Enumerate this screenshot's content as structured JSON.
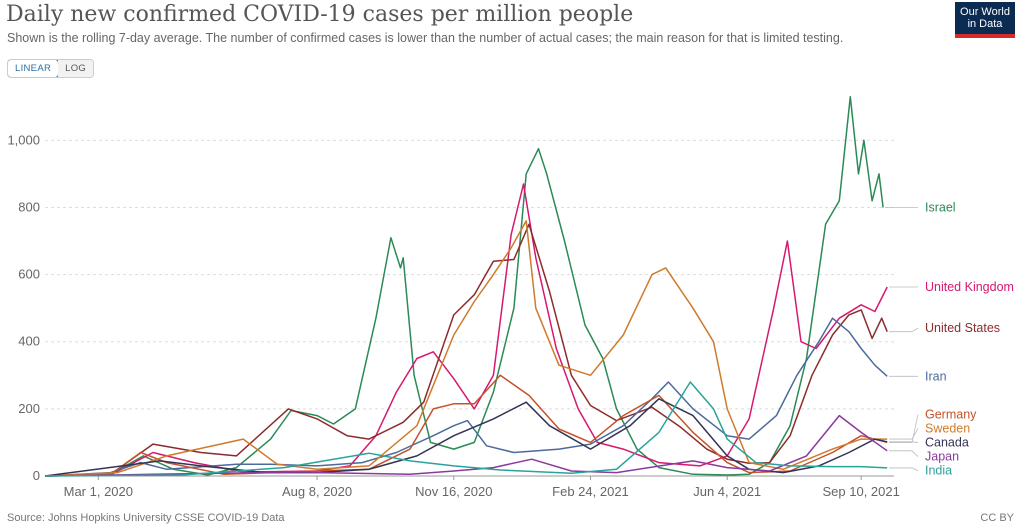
{
  "title": "Daily new confirmed COVID-19 cases per million people",
  "subtitle": "Shown is the rolling 7-day average. The number of confirmed cases is lower than the number of actual cases; the main reason for that is limited testing.",
  "logo": {
    "line1": "Our World",
    "line2": "in Data"
  },
  "scale_toggle": {
    "linear": "LINEAR",
    "log": "LOG",
    "selected": "LINEAR"
  },
  "source": "Source: Johns Hopkins University CSSE COVID-19 Data",
  "license": "CC BY",
  "chart_data": {
    "type": "line",
    "x_range": [
      "2020-01-22",
      "2021-10-04"
    ],
    "ylim": [
      0,
      1150
    ],
    "y_ticks": [
      0,
      200,
      400,
      600,
      800,
      1000
    ],
    "y_tick_labels": [
      "0",
      "200",
      "400",
      "600",
      "800",
      "1,000"
    ],
    "x_ticks": [
      "2020-03-01",
      "2020-08-08",
      "2020-11-16",
      "2021-02-24",
      "2021-06-04",
      "2021-09-10"
    ],
    "x_tick_labels": [
      "Mar 1, 2020",
      "Aug 8, 2020",
      "Nov 16, 2020",
      "Feb 24, 2021",
      "Jun 4, 2021",
      "Sep 10, 2021"
    ],
    "grid": "horizontal dashed",
    "legend": "right, labels at line ends",
    "series": [
      {
        "name": "Israel",
        "color": "#2b8a56",
        "points": [
          [
            "2020-01-22",
            0
          ],
          [
            "2020-03-10",
            5
          ],
          [
            "2020-04-03",
            60
          ],
          [
            "2020-04-25",
            20
          ],
          [
            "2020-05-20",
            3
          ],
          [
            "2020-06-10",
            25
          ],
          [
            "2020-07-05",
            110
          ],
          [
            "2020-07-20",
            195
          ],
          [
            "2020-08-08",
            180
          ],
          [
            "2020-08-20",
            155
          ],
          [
            "2020-09-05",
            200
          ],
          [
            "2020-09-20",
            470
          ],
          [
            "2020-10-01",
            710
          ],
          [
            "2020-10-08",
            620
          ],
          [
            "2020-10-10",
            650
          ],
          [
            "2020-10-18",
            300
          ],
          [
            "2020-10-30",
            100
          ],
          [
            "2020-11-16",
            80
          ],
          [
            "2020-12-01",
            100
          ],
          [
            "2020-12-15",
            250
          ],
          [
            "2020-12-30",
            500
          ],
          [
            "2021-01-08",
            900
          ],
          [
            "2021-01-17",
            975
          ],
          [
            "2021-01-23",
            900
          ],
          [
            "2021-02-05",
            700
          ],
          [
            "2021-02-20",
            450
          ],
          [
            "2021-03-05",
            350
          ],
          [
            "2021-03-15",
            200
          ],
          [
            "2021-03-30",
            80
          ],
          [
            "2021-04-15",
            25
          ],
          [
            "2021-05-10",
            5
          ],
          [
            "2021-06-04",
            3
          ],
          [
            "2021-06-20",
            5
          ],
          [
            "2021-07-05",
            40
          ],
          [
            "2021-07-20",
            150
          ],
          [
            "2021-08-01",
            350
          ],
          [
            "2021-08-15",
            750
          ],
          [
            "2021-08-25",
            820
          ],
          [
            "2021-09-02",
            1130
          ],
          [
            "2021-09-08",
            900
          ],
          [
            "2021-09-12",
            1000
          ],
          [
            "2021-09-18",
            820
          ],
          [
            "2021-09-23",
            900
          ],
          [
            "2021-09-26",
            800
          ]
        ]
      },
      {
        "name": "United Kingdom",
        "color": "#d6196f",
        "points": [
          [
            "2020-01-22",
            0
          ],
          [
            "2020-03-10",
            3
          ],
          [
            "2020-04-10",
            70
          ],
          [
            "2020-05-10",
            40
          ],
          [
            "2020-06-15",
            12
          ],
          [
            "2020-08-08",
            15
          ],
          [
            "2020-09-01",
            30
          ],
          [
            "2020-09-20",
            120
          ],
          [
            "2020-10-05",
            250
          ],
          [
            "2020-10-20",
            350
          ],
          [
            "2020-11-01",
            370
          ],
          [
            "2020-11-16",
            290
          ],
          [
            "2020-12-01",
            200
          ],
          [
            "2020-12-15",
            300
          ],
          [
            "2020-12-28",
            720
          ],
          [
            "2021-01-06",
            870
          ],
          [
            "2021-01-15",
            650
          ],
          [
            "2021-01-30",
            380
          ],
          [
            "2021-02-15",
            200
          ],
          [
            "2021-03-01",
            100
          ],
          [
            "2021-03-20",
            80
          ],
          [
            "2021-04-15",
            40
          ],
          [
            "2021-05-15",
            30
          ],
          [
            "2021-06-04",
            60
          ],
          [
            "2021-06-20",
            170
          ],
          [
            "2021-07-08",
            500
          ],
          [
            "2021-07-18",
            700
          ],
          [
            "2021-07-28",
            400
          ],
          [
            "2021-08-08",
            380
          ],
          [
            "2021-08-25",
            470
          ],
          [
            "2021-09-10",
            510
          ],
          [
            "2021-09-20",
            490
          ],
          [
            "2021-09-29",
            563
          ]
        ]
      },
      {
        "name": "United States",
        "color": "#8c2b2b",
        "points": [
          [
            "2020-01-22",
            0
          ],
          [
            "2020-03-10",
            5
          ],
          [
            "2020-04-10",
            95
          ],
          [
            "2020-05-15",
            70
          ],
          [
            "2020-06-10",
            60
          ],
          [
            "2020-07-18",
            200
          ],
          [
            "2020-08-08",
            170
          ],
          [
            "2020-08-30",
            120
          ],
          [
            "2020-09-15",
            110
          ],
          [
            "2020-10-10",
            160
          ],
          [
            "2020-10-25",
            220
          ],
          [
            "2020-11-16",
            480
          ],
          [
            "2020-12-01",
            540
          ],
          [
            "2020-12-15",
            640
          ],
          [
            "2020-12-30",
            645
          ],
          [
            "2021-01-10",
            750
          ],
          [
            "2021-01-25",
            550
          ],
          [
            "2021-02-10",
            300
          ],
          [
            "2021-02-24",
            210
          ],
          [
            "2021-03-15",
            165
          ],
          [
            "2021-04-10",
            205
          ],
          [
            "2021-05-01",
            145
          ],
          [
            "2021-05-20",
            80
          ],
          [
            "2021-06-04",
            50
          ],
          [
            "2021-06-20",
            38
          ],
          [
            "2021-07-05",
            40
          ],
          [
            "2021-07-20",
            120
          ],
          [
            "2021-08-05",
            300
          ],
          [
            "2021-08-20",
            420
          ],
          [
            "2021-09-01",
            480
          ],
          [
            "2021-09-10",
            495
          ],
          [
            "2021-09-18",
            410
          ],
          [
            "2021-09-25",
            470
          ],
          [
            "2021-09-29",
            430
          ]
        ]
      },
      {
        "name": "Iran",
        "color": "#4c6a9c",
        "points": [
          [
            "2020-01-22",
            0
          ],
          [
            "2020-03-10",
            10
          ],
          [
            "2020-04-01",
            40
          ],
          [
            "2020-04-20",
            20
          ],
          [
            "2020-06-10",
            35
          ],
          [
            "2020-07-05",
            35
          ],
          [
            "2020-08-08",
            30
          ],
          [
            "2020-09-10",
            40
          ],
          [
            "2020-10-05",
            70
          ],
          [
            "2020-11-01",
            120
          ],
          [
            "2020-11-16",
            150
          ],
          [
            "2020-11-26",
            165
          ],
          [
            "2020-12-10",
            90
          ],
          [
            "2020-12-30",
            70
          ],
          [
            "2021-02-01",
            80
          ],
          [
            "2021-02-24",
            95
          ],
          [
            "2021-03-20",
            150
          ],
          [
            "2021-04-10",
            230
          ],
          [
            "2021-04-22",
            280
          ],
          [
            "2021-05-10",
            200
          ],
          [
            "2021-06-04",
            120
          ],
          [
            "2021-06-20",
            110
          ],
          [
            "2021-07-10",
            180
          ],
          [
            "2021-07-25",
            300
          ],
          [
            "2021-08-10",
            400
          ],
          [
            "2021-08-20",
            470
          ],
          [
            "2021-09-01",
            430
          ],
          [
            "2021-09-10",
            380
          ],
          [
            "2021-09-20",
            330
          ],
          [
            "2021-09-29",
            297
          ]
        ]
      },
      {
        "name": "Germany",
        "color": "#c4522a",
        "points": [
          [
            "2020-01-22",
            0
          ],
          [
            "2020-03-10",
            5
          ],
          [
            "2020-04-01",
            70
          ],
          [
            "2020-04-20",
            40
          ],
          [
            "2020-06-01",
            5
          ],
          [
            "2020-08-08",
            15
          ],
          [
            "2020-09-15",
            20
          ],
          [
            "2020-10-15",
            80
          ],
          [
            "2020-11-01",
            200
          ],
          [
            "2020-11-16",
            215
          ],
          [
            "2020-12-01",
            215
          ],
          [
            "2020-12-20",
            300
          ],
          [
            "2021-01-10",
            240
          ],
          [
            "2021-02-01",
            140
          ],
          [
            "2021-02-24",
            100
          ],
          [
            "2021-03-20",
            180
          ],
          [
            "2021-04-15",
            240
          ],
          [
            "2021-05-10",
            130
          ],
          [
            "2021-06-04",
            40
          ],
          [
            "2021-06-20",
            10
          ],
          [
            "2021-07-20",
            15
          ],
          [
            "2021-08-20",
            70
          ],
          [
            "2021-09-10",
            120
          ],
          [
            "2021-09-29",
            100
          ]
        ]
      },
      {
        "name": "Sweden",
        "color": "#d07a2b",
        "points": [
          [
            "2020-01-22",
            0
          ],
          [
            "2020-03-15",
            10
          ],
          [
            "2020-04-20",
            60
          ],
          [
            "2020-06-15",
            110
          ],
          [
            "2020-07-10",
            35
          ],
          [
            "2020-08-08",
            20
          ],
          [
            "2020-09-15",
            30
          ],
          [
            "2020-10-20",
            150
          ],
          [
            "2020-11-16",
            420
          ],
          [
            "2020-12-01",
            520
          ],
          [
            "2020-12-15",
            600
          ],
          [
            "2020-12-28",
            680
          ],
          [
            "2021-01-08",
            760
          ],
          [
            "2021-01-15",
            500
          ],
          [
            "2021-02-01",
            330
          ],
          [
            "2021-02-24",
            300
          ],
          [
            "2021-03-20",
            420
          ],
          [
            "2021-04-10",
            600
          ],
          [
            "2021-04-20",
            620
          ],
          [
            "2021-05-10",
            500
          ],
          [
            "2021-05-25",
            400
          ],
          [
            "2021-06-04",
            200
          ],
          [
            "2021-06-20",
            40
          ],
          [
            "2021-07-15",
            20
          ],
          [
            "2021-08-20",
            80
          ],
          [
            "2021-09-10",
            110
          ],
          [
            "2021-09-29",
            110
          ]
        ]
      },
      {
        "name": "Canada",
        "color": "#333355",
        "points": [
          [
            "2020-01-22",
            0
          ],
          [
            "2020-04-15",
            45
          ],
          [
            "2020-05-15",
            30
          ],
          [
            "2020-07-01",
            10
          ],
          [
            "2020-08-08",
            10
          ],
          [
            "2020-09-15",
            20
          ],
          [
            "2020-10-20",
            60
          ],
          [
            "2020-11-16",
            120
          ],
          [
            "2020-12-15",
            170
          ],
          [
            "2021-01-08",
            220
          ],
          [
            "2021-01-25",
            150
          ],
          [
            "2021-02-24",
            80
          ],
          [
            "2021-03-25",
            150
          ],
          [
            "2021-04-15",
            230
          ],
          [
            "2021-05-10",
            180
          ],
          [
            "2021-06-04",
            60
          ],
          [
            "2021-06-20",
            20
          ],
          [
            "2021-07-15",
            10
          ],
          [
            "2021-08-10",
            30
          ],
          [
            "2021-09-01",
            70
          ],
          [
            "2021-09-20",
            110
          ],
          [
            "2021-09-29",
            102
          ]
        ]
      },
      {
        "name": "Japan",
        "color": "#8a3a9c",
        "points": [
          [
            "2020-01-22",
            0
          ],
          [
            "2020-04-10",
            5
          ],
          [
            "2020-07-30",
            12
          ],
          [
            "2020-08-08",
            10
          ],
          [
            "2020-10-15",
            5
          ],
          [
            "2020-11-16",
            15
          ],
          [
            "2020-12-15",
            25
          ],
          [
            "2021-01-12",
            50
          ],
          [
            "2021-02-10",
            15
          ],
          [
            "2021-03-15",
            10
          ],
          [
            "2021-05-10",
            45
          ],
          [
            "2021-06-04",
            25
          ],
          [
            "2021-07-05",
            15
          ],
          [
            "2021-08-01",
            60
          ],
          [
            "2021-08-25",
            180
          ],
          [
            "2021-09-10",
            130
          ],
          [
            "2021-09-29",
            75
          ]
        ]
      },
      {
        "name": "India",
        "color": "#2aa39c",
        "points": [
          [
            "2020-01-22",
            0
          ],
          [
            "2020-05-01",
            3
          ],
          [
            "2020-07-15",
            25
          ],
          [
            "2020-09-15",
            68
          ],
          [
            "2020-10-15",
            45
          ],
          [
            "2020-11-16",
            30
          ],
          [
            "2020-12-20",
            18
          ],
          [
            "2021-02-10",
            8
          ],
          [
            "2021-03-15",
            20
          ],
          [
            "2021-04-15",
            130
          ],
          [
            "2021-05-08",
            280
          ],
          [
            "2021-05-25",
            200
          ],
          [
            "2021-06-04",
            110
          ],
          [
            "2021-06-25",
            40
          ],
          [
            "2021-07-20",
            30
          ],
          [
            "2021-08-20",
            28
          ],
          [
            "2021-09-10",
            28
          ],
          [
            "2021-09-29",
            24
          ]
        ]
      }
    ],
    "end_labels": [
      {
        "name": "Israel",
        "y": 800
      },
      {
        "name": "United Kingdom",
        "y": 563
      },
      {
        "name": "United States",
        "y": 441
      },
      {
        "name": "Iran",
        "y": 297
      },
      {
        "name": "Germany",
        "y": 183
      },
      {
        "name": "Sweden",
        "y": 142
      },
      {
        "name": "Canada",
        "y": 102
      },
      {
        "name": "Japan",
        "y": 60
      },
      {
        "name": "India",
        "y": 20
      }
    ]
  }
}
